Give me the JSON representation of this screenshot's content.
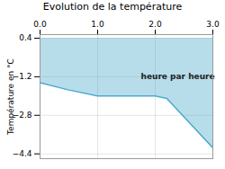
{
  "chart_data": {
    "type": "area",
    "title": "Evolution de la température",
    "ylabel": "Température en °C",
    "x": [
      0,
      0.5,
      1.0,
      2.0,
      2.2,
      3.0
    ],
    "values": [
      -1.45,
      -1.75,
      -2.0,
      -2.0,
      -2.1,
      -4.15
    ],
    "fill_top": 0.4,
    "color": "#4aabcc",
    "xlim": [
      0,
      3
    ],
    "xticks": [
      0,
      1,
      2,
      3
    ],
    "ylim": [
      -4.6,
      0.55
    ],
    "yticks": [
      0.4,
      -1.2,
      -2.8,
      -4.4
    ],
    "grid": true,
    "annotations": [
      {
        "text": "heure par heure",
        "x": 1.75,
        "y": -1.2
      }
    ]
  }
}
